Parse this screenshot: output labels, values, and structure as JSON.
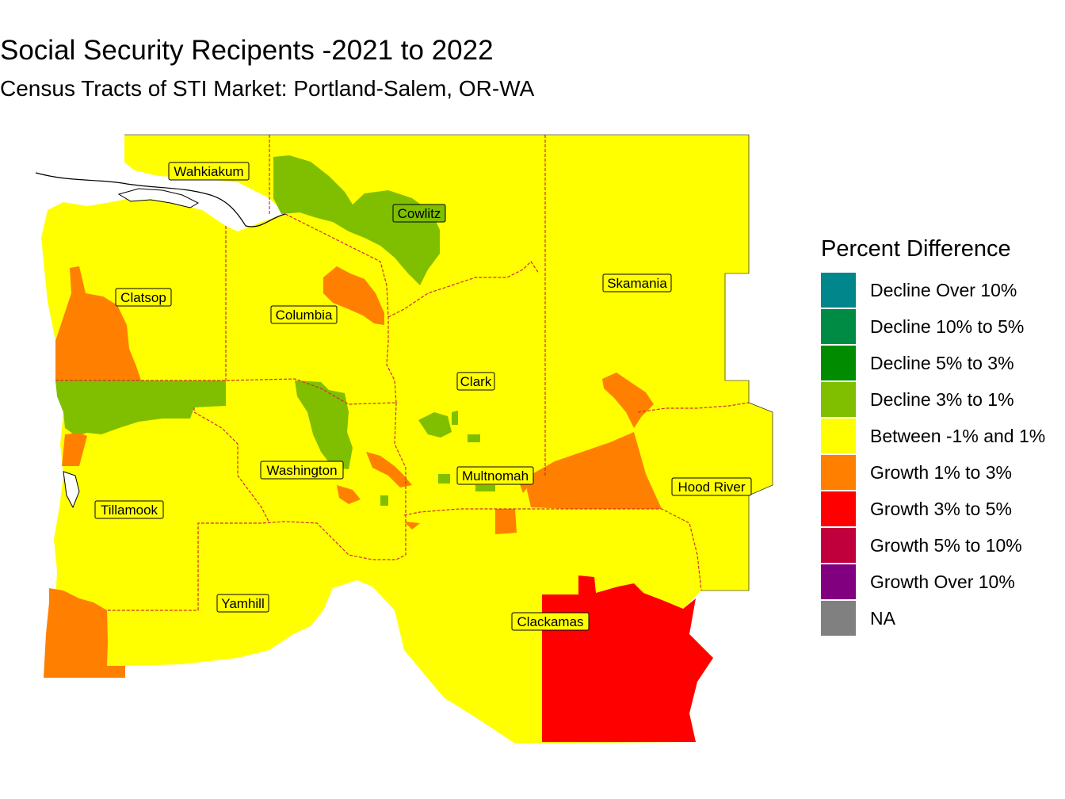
{
  "header": {
    "title": "Social Security Recipents -2021 to 2022",
    "subtitle": "Census Tracts of STI Market: Portland-Salem, OR-WA"
  },
  "legend": {
    "title": "Percent Difference",
    "items": [
      {
        "label": "Decline Over 10%",
        "color": "#00868b"
      },
      {
        "label": "Decline 10% to 5%",
        "color": "#008b45"
      },
      {
        "label": "Decline 5% to 3%",
        "color": "#008b00"
      },
      {
        "label": "Decline 3% to 1%",
        "color": "#7fbf00"
      },
      {
        "label": "Between -1% and 1%",
        "color": "#ffff00"
      },
      {
        "label": "Growth 1% to 3%",
        "color": "#ff7f00"
      },
      {
        "label": "Growth 3% to 5%",
        "color": "#ff0000"
      },
      {
        "label": "Growth 5% to 10%",
        "color": "#c0003c"
      },
      {
        "label": "Growth Over 10%",
        "color": "#800080"
      },
      {
        "label": "NA",
        "color": "#808080"
      }
    ]
  },
  "counties": [
    {
      "name": "Wahkiakum"
    },
    {
      "name": "Cowlitz"
    },
    {
      "name": "Clatsop"
    },
    {
      "name": "Columbia"
    },
    {
      "name": "Skamania"
    },
    {
      "name": "Clark"
    },
    {
      "name": "Washington"
    },
    {
      "name": "Multnomah"
    },
    {
      "name": "Hood River"
    },
    {
      "name": "Tillamook"
    },
    {
      "name": "Yamhill"
    },
    {
      "name": "Clackamas"
    }
  ]
}
